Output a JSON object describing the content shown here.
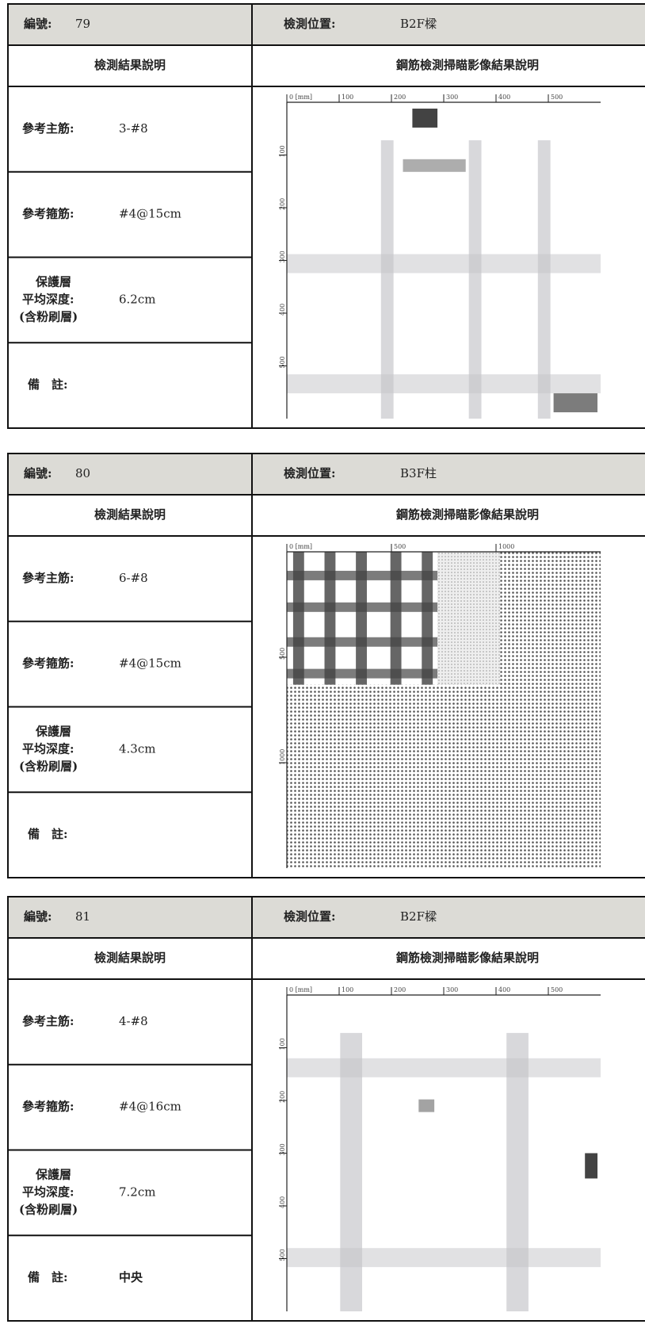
{
  "records": [
    {
      "number_label": "編號:",
      "number": "79",
      "location_label": "檢測位置:",
      "location": "B2F樑",
      "left_header": "檢測結果說明",
      "right_header": "鋼筋檢測掃瞄影像結果說明",
      "main_bar_label": "參考主筋:",
      "main_bar": "3-#8",
      "stirrup_label": "參考箍筋:",
      "stirrup": "#4@15cm",
      "cover_label_1": "保護層",
      "cover_label_2": "平均深度:",
      "cover_value": "6.2cm",
      "cover_label_3": "(含粉刷層)",
      "remark_label": "備　註:",
      "scan": {
        "x_labels": [
          "0 [mm]",
          "100",
          "200",
          "300",
          "400",
          "500"
        ],
        "y_labels": [
          "100",
          "200",
          "300",
          "400",
          "500"
        ]
      }
    },
    {
      "number_label": "編號:",
      "number": "80",
      "location_label": "檢測位置:",
      "location": "B3F柱",
      "left_header": "檢測結果說明",
      "right_header": "鋼筋檢測掃瞄影像結果說明",
      "main_bar_label": "參考主筋:",
      "main_bar": "6-#8",
      "stirrup_label": "參考箍筋:",
      "stirrup": "#4@15cm",
      "cover_label_1": "保護層",
      "cover_label_2": "平均深度:",
      "cover_value": "4.3cm",
      "cover_label_3": "(含粉刷層)",
      "remark_label": "備　註:",
      "scan": {
        "x_labels": [
          "0 [mm]",
          "500",
          "1000"
        ],
        "y_labels": [
          "500",
          "1000"
        ]
      }
    },
    {
      "number_label": "編號:",
      "number": "81",
      "location_label": "檢測位置:",
      "location": "B2F樑",
      "left_header": "檢測結果說明",
      "right_header": "鋼筋檢測掃瞄影像結果說明",
      "main_bar_label": "參考主筋:",
      "main_bar": "4-#8",
      "stirrup_label": "參考箍筋:",
      "stirrup": "#4@16cm",
      "cover_label_1": "保護層",
      "cover_label_2": "平均深度:",
      "cover_value": "7.2cm",
      "cover_label_3": "(含粉刷層)",
      "remark_label": "備　註:",
      "remark": "中央",
      "scan": {
        "x_labels": [
          "0 [mm]",
          "100",
          "200",
          "300",
          "400",
          "500"
        ],
        "y_labels": [
          "100",
          "200",
          "300",
          "400",
          "500"
        ]
      }
    }
  ]
}
